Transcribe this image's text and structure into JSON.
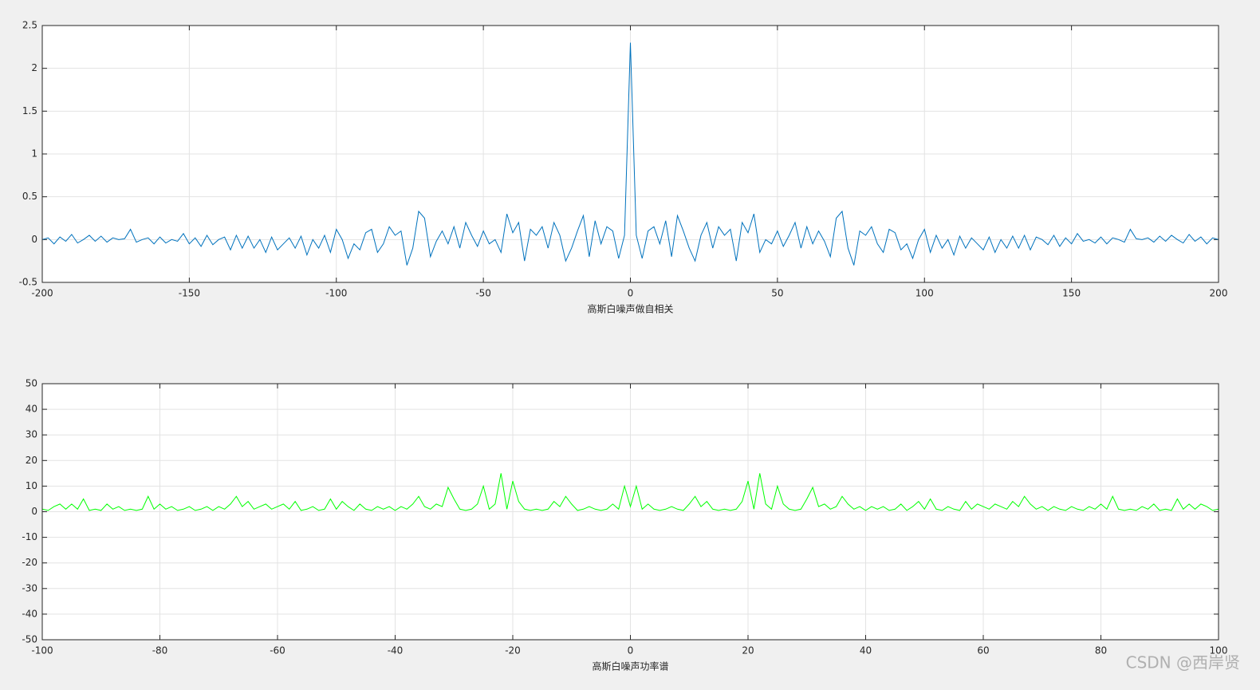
{
  "chart_data": [
    {
      "type": "line",
      "xlabel": "高斯白噪声做自相关",
      "color": "#0072bd",
      "xlim": [
        -200,
        200
      ],
      "xticks": [
        -200,
        -150,
        -100,
        -50,
        0,
        50,
        100,
        150,
        200
      ],
      "ylim": [
        -0.5,
        2.5
      ],
      "yticks": [
        -0.5,
        0,
        0.5,
        1,
        1.5,
        2,
        2.5
      ],
      "grid": true,
      "x": [
        -200,
        -198,
        -196,
        -194,
        -192,
        -190,
        -188,
        -186,
        -184,
        -182,
        -180,
        -178,
        -176,
        -174,
        -172,
        -170,
        -168,
        -166,
        -164,
        -162,
        -160,
        -158,
        -156,
        -154,
        -152,
        -150,
        -148,
        -146,
        -144,
        -142,
        -140,
        -138,
        -136,
        -134,
        -132,
        -130,
        -128,
        -126,
        -124,
        -122,
        -120,
        -118,
        -116,
        -114,
        -112,
        -110,
        -108,
        -106,
        -104,
        -102,
        -100,
        -98,
        -96,
        -94,
        -92,
        -90,
        -88,
        -86,
        -84,
        -82,
        -80,
        -78,
        -76,
        -74,
        -72,
        -70,
        -68,
        -66,
        -64,
        -62,
        -60,
        -58,
        -56,
        -54,
        -52,
        -50,
        -48,
        -46,
        -44,
        -42,
        -40,
        -38,
        -36,
        -34,
        -32,
        -30,
        -28,
        -26,
        -24,
        -22,
        -20,
        -18,
        -16,
        -14,
        -12,
        -10,
        -8,
        -6,
        -4,
        -2,
        0,
        2,
        4,
        6,
        8,
        10,
        12,
        14,
        16,
        18,
        20,
        22,
        24,
        26,
        28,
        30,
        32,
        34,
        36,
        38,
        40,
        42,
        44,
        46,
        48,
        50,
        52,
        54,
        56,
        58,
        60,
        62,
        64,
        66,
        68,
        70,
        72,
        74,
        76,
        78,
        80,
        82,
        84,
        86,
        88,
        90,
        92,
        94,
        96,
        98,
        100,
        102,
        104,
        106,
        108,
        110,
        112,
        114,
        116,
        118,
        120,
        122,
        124,
        126,
        128,
        130,
        132,
        134,
        136,
        138,
        140,
        142,
        144,
        146,
        148,
        150,
        152,
        154,
        156,
        158,
        160,
        162,
        164,
        166,
        168,
        170,
        172,
        174,
        176,
        178,
        180,
        182,
        184,
        186,
        188,
        190,
        192,
        194,
        196,
        198,
        200
      ],
      "values": [
        0,
        0.02,
        -0.05,
        0.03,
        -0.02,
        0.06,
        -0.04,
        0,
        0.05,
        -0.02,
        0.04,
        -0.03,
        0.02,
        0,
        0.01,
        0.12,
        -0.03,
        0,
        0.02,
        -0.05,
        0.03,
        -0.04,
        0,
        -0.02,
        0.07,
        -0.05,
        0.02,
        -0.08,
        0.05,
        -0.06,
        0,
        0.03,
        -0.12,
        0.05,
        -0.1,
        0.04,
        -0.1,
        0,
        -0.15,
        0.03,
        -0.12,
        -0.05,
        0.02,
        -0.1,
        0.04,
        -0.18,
        0,
        -0.1,
        0.05,
        -0.15,
        0.12,
        0,
        -0.22,
        -0.05,
        -0.12,
        0.08,
        0.12,
        -0.15,
        -0.05,
        0.15,
        0.05,
        0.1,
        -0.3,
        -0.1,
        0.33,
        0.25,
        -0.2,
        -0.02,
        0.1,
        -0.05,
        0.15,
        -0.1,
        0.2,
        0.05,
        -0.08,
        0.1,
        -0.05,
        0,
        -0.15,
        0.3,
        0.08,
        0.2,
        -0.25,
        0.12,
        0.05,
        0.15,
        -0.1,
        0.2,
        0.05,
        -0.25,
        -0.1,
        0.1,
        0.28,
        -0.2,
        0.22,
        -0.05,
        0.15,
        0.1,
        -0.22,
        0.05,
        2.3,
        0.05,
        -0.22,
        0.1,
        0.15,
        -0.05,
        0.22,
        -0.2,
        0.28,
        0.1,
        -0.1,
        -0.25,
        0.05,
        0.2,
        -0.1,
        0.15,
        0.05,
        0.12,
        -0.25,
        0.2,
        0.08,
        0.3,
        -0.15,
        0,
        -0.05,
        0.1,
        -0.08,
        0.05,
        0.2,
        -0.1,
        0.15,
        -0.05,
        0.1,
        -0.02,
        -0.2,
        0.25,
        0.33,
        -0.1,
        -0.3,
        0.1,
        0.05,
        0.15,
        -0.05,
        -0.15,
        0.12,
        0.08,
        -0.12,
        -0.05,
        -0.22,
        0,
        0.12,
        -0.15,
        0.05,
        -0.1,
        0,
        -0.18,
        0.04,
        -0.1,
        0.02,
        -0.05,
        -0.12,
        0.03,
        -0.15,
        0,
        -0.1,
        0.04,
        -0.1,
        0.05,
        -0.12,
        0.03,
        0,
        -0.06,
        0.05,
        -0.08,
        0.02,
        -0.05,
        0.07,
        -0.02,
        0,
        -0.04,
        0.03,
        -0.05,
        0.02,
        0,
        -0.03,
        0.12,
        0.01,
        0,
        0.02,
        -0.03,
        0.04,
        -0.02,
        0.05,
        0,
        -0.04,
        0.06,
        -0.02,
        0.03,
        -0.05,
        0.02,
        0
      ]
    },
    {
      "type": "line",
      "xlabel": "高斯白噪声功率谱",
      "color": "#00ff00",
      "xlim": [
        -100,
        100
      ],
      "xticks": [
        -100,
        -80,
        -60,
        -40,
        -20,
        0,
        20,
        40,
        60,
        80,
        100
      ],
      "ylim": [
        -50,
        50
      ],
      "yticks": [
        -50,
        -40,
        -30,
        -20,
        -10,
        0,
        10,
        20,
        30,
        40,
        50
      ],
      "grid": true,
      "x": [
        -100,
        -99,
        -98,
        -97,
        -96,
        -95,
        -94,
        -93,
        -92,
        -91,
        -90,
        -89,
        -88,
        -87,
        -86,
        -85,
        -84,
        -83,
        -82,
        -81,
        -80,
        -79,
        -78,
        -77,
        -76,
        -75,
        -74,
        -73,
        -72,
        -71,
        -70,
        -69,
        -68,
        -67,
        -66,
        -65,
        -64,
        -63,
        -62,
        -61,
        -60,
        -59,
        -58,
        -57,
        -56,
        -55,
        -54,
        -53,
        -52,
        -51,
        -50,
        -49,
        -48,
        -47,
        -46,
        -45,
        -44,
        -43,
        -42,
        -41,
        -40,
        -39,
        -38,
        -37,
        -36,
        -35,
        -34,
        -33,
        -32,
        -31,
        -30,
        -29,
        -28,
        -27,
        -26,
        -25,
        -24,
        -23,
        -22,
        -21,
        -20,
        -19,
        -18,
        -17,
        -16,
        -15,
        -14,
        -13,
        -12,
        -11,
        -10,
        -9,
        -8,
        -7,
        -6,
        -5,
        -4,
        -3,
        -2,
        -1,
        0,
        1,
        2,
        3,
        4,
        5,
        6,
        7,
        8,
        9,
        10,
        11,
        12,
        13,
        14,
        15,
        16,
        17,
        18,
        19,
        20,
        21,
        22,
        23,
        24,
        25,
        26,
        27,
        28,
        29,
        30,
        31,
        32,
        33,
        34,
        35,
        36,
        37,
        38,
        39,
        40,
        41,
        42,
        43,
        44,
        45,
        46,
        47,
        48,
        49,
        50,
        51,
        52,
        53,
        54,
        55,
        56,
        57,
        58,
        59,
        60,
        61,
        62,
        63,
        64,
        65,
        66,
        67,
        68,
        69,
        70,
        71,
        72,
        73,
        74,
        75,
        76,
        77,
        78,
        79,
        80,
        81,
        82,
        83,
        84,
        85,
        86,
        87,
        88,
        89,
        90,
        91,
        92,
        93,
        94,
        95,
        96,
        97,
        98,
        99,
        100
      ],
      "values": [
        1,
        0.5,
        2,
        3,
        1,
        3,
        1,
        5,
        0.5,
        1,
        0.5,
        3,
        1,
        2,
        0.5,
        1,
        0.5,
        1,
        6,
        1,
        3,
        1,
        2,
        0.5,
        1,
        2,
        0.5,
        1,
        2,
        0.5,
        2,
        1,
        3,
        6,
        2,
        4,
        1,
        2,
        3,
        1,
        2,
        3,
        1,
        4,
        0.5,
        1,
        2,
        0.5,
        1,
        5,
        1,
        4,
        2,
        0.5,
        3,
        1,
        0.5,
        2,
        1,
        2,
        0.5,
        2,
        1,
        3,
        6,
        2,
        1,
        3,
        2,
        9.5,
        5,
        1,
        0.5,
        1,
        3,
        10,
        1,
        3,
        15,
        1,
        12,
        4,
        1,
        0.5,
        1,
        0.5,
        1,
        4,
        2,
        6,
        3,
        0.5,
        1,
        2,
        1,
        0.5,
        1,
        3,
        1,
        10,
        2,
        10,
        1,
        3,
        1,
        0.5,
        1,
        2,
        1,
        0.5,
        3,
        6,
        2,
        4,
        1,
        0.5,
        1,
        0.5,
        1,
        4,
        12,
        1,
        15,
        3,
        1,
        10,
        3,
        1,
        0.5,
        1,
        5,
        9.5,
        2,
        3,
        1,
        2,
        6,
        3,
        1,
        2,
        0.5,
        2,
        1,
        2,
        0.5,
        1,
        3,
        0.5,
        2,
        4,
        1,
        5,
        1,
        0.5,
        2,
        1,
        0.5,
        4,
        1,
        3,
        2,
        1,
        3,
        2,
        1,
        4,
        2,
        6,
        3,
        1,
        2,
        0.5,
        2,
        1,
        0.5,
        2,
        1,
        0.5,
        2,
        1,
        3,
        1,
        6,
        1,
        0.5,
        1,
        0.5,
        2,
        1,
        3,
        0.5,
        1,
        0.5,
        5,
        1,
        3,
        1,
        3,
        2,
        0.5,
        1
      ]
    }
  ],
  "watermark": "CSDN @西岸贤"
}
